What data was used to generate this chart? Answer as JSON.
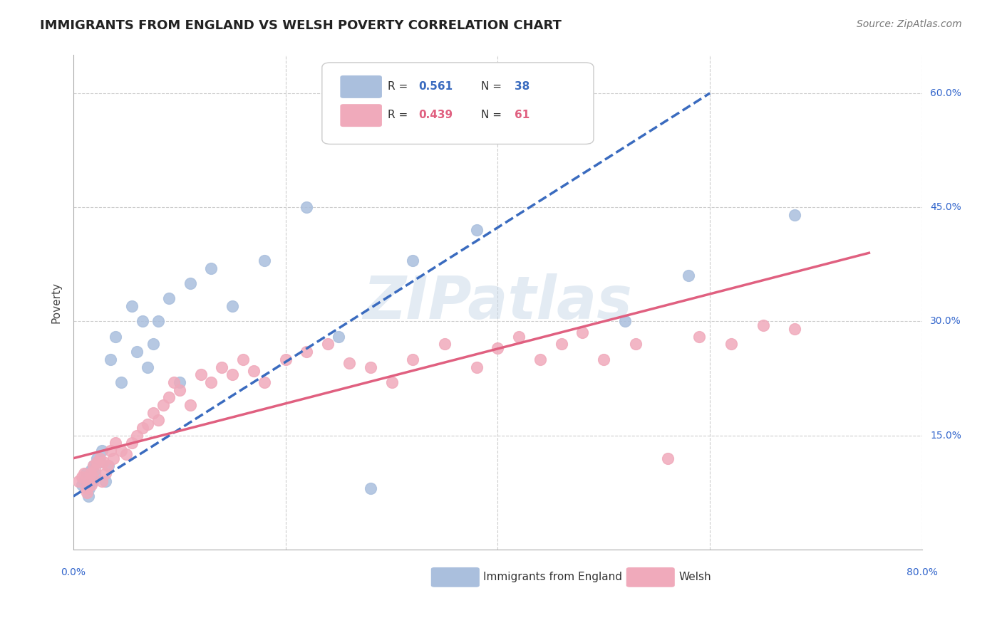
{
  "title": "IMMIGRANTS FROM ENGLAND VS WELSH POVERTY CORRELATION CHART",
  "source": "Source: ZipAtlas.com",
  "ylabel": "Poverty",
  "xlim": [
    0.0,
    0.8
  ],
  "ylim": [
    0.0,
    0.65
  ],
  "xticks": [
    0.0,
    0.2,
    0.4,
    0.6,
    0.8
  ],
  "yticks": [
    0.0,
    0.15,
    0.3,
    0.45,
    0.6
  ],
  "yticklabels": [
    "",
    "15.0%",
    "30.0%",
    "45.0%",
    "60.0%"
  ],
  "grid_color": "#cccccc",
  "background_color": "#ffffff",
  "series": [
    {
      "name": "Immigrants from England",
      "R": "0.561",
      "N": "38",
      "color": "#aabfdd",
      "line_color": "#3a6bbf",
      "scatter_x": [
        0.008,
        0.01,
        0.012,
        0.014,
        0.015,
        0.016,
        0.017,
        0.018,
        0.019,
        0.02,
        0.022,
        0.025,
        0.027,
        0.03,
        0.033,
        0.035,
        0.04,
        0.045,
        0.055,
        0.06,
        0.065,
        0.07,
        0.075,
        0.08,
        0.09,
        0.1,
        0.11,
        0.13,
        0.15,
        0.18,
        0.22,
        0.25,
        0.28,
        0.32,
        0.38,
        0.52,
        0.58,
        0.68
      ],
      "scatter_y": [
        0.085,
        0.09,
        0.1,
        0.07,
        0.08,
        0.095,
        0.105,
        0.09,
        0.11,
        0.1,
        0.12,
        0.115,
        0.13,
        0.09,
        0.11,
        0.25,
        0.28,
        0.22,
        0.32,
        0.26,
        0.3,
        0.24,
        0.27,
        0.3,
        0.33,
        0.22,
        0.35,
        0.37,
        0.32,
        0.38,
        0.45,
        0.28,
        0.08,
        0.38,
        0.42,
        0.3,
        0.36,
        0.44
      ],
      "trend_x": [
        0.0,
        0.6
      ],
      "trend_y": [
        0.07,
        0.6
      ],
      "trend_style": "dashed"
    },
    {
      "name": "Welsh",
      "R": "0.439",
      "N": "61",
      "color": "#f0aabb",
      "line_color": "#e06080",
      "scatter_x": [
        0.005,
        0.008,
        0.01,
        0.012,
        0.013,
        0.015,
        0.016,
        0.017,
        0.018,
        0.019,
        0.02,
        0.022,
        0.025,
        0.027,
        0.028,
        0.03,
        0.032,
        0.035,
        0.038,
        0.04,
        0.045,
        0.05,
        0.055,
        0.06,
        0.065,
        0.07,
        0.075,
        0.08,
        0.085,
        0.09,
        0.095,
        0.1,
        0.11,
        0.12,
        0.13,
        0.14,
        0.15,
        0.16,
        0.17,
        0.18,
        0.2,
        0.22,
        0.24,
        0.26,
        0.28,
        0.3,
        0.32,
        0.35,
        0.38,
        0.4,
        0.42,
        0.44,
        0.46,
        0.48,
        0.5,
        0.53,
        0.56,
        0.59,
        0.62,
        0.65,
        0.68
      ],
      "scatter_y": [
        0.09,
        0.095,
        0.1,
        0.08,
        0.075,
        0.09,
        0.1,
        0.085,
        0.095,
        0.11,
        0.105,
        0.115,
        0.12,
        0.09,
        0.115,
        0.1,
        0.11,
        0.13,
        0.12,
        0.14,
        0.13,
        0.125,
        0.14,
        0.15,
        0.16,
        0.165,
        0.18,
        0.17,
        0.19,
        0.2,
        0.22,
        0.21,
        0.19,
        0.23,
        0.22,
        0.24,
        0.23,
        0.25,
        0.235,
        0.22,
        0.25,
        0.26,
        0.27,
        0.245,
        0.24,
        0.22,
        0.25,
        0.27,
        0.24,
        0.265,
        0.28,
        0.25,
        0.27,
        0.285,
        0.25,
        0.27,
        0.12,
        0.28,
        0.27,
        0.295,
        0.29
      ],
      "trend_x": [
        0.0,
        0.75
      ],
      "trend_y": [
        0.12,
        0.39
      ],
      "trend_style": "solid"
    }
  ],
  "title_color": "#222222",
  "tick_label_color": "#3366cc"
}
